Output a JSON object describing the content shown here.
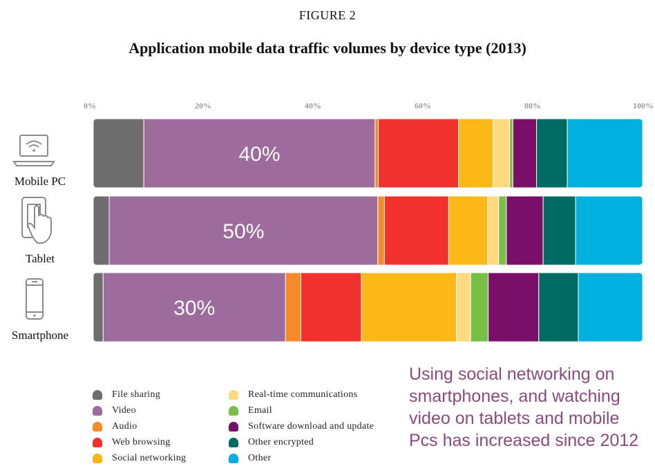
{
  "figure_label": "FIGURE 2",
  "chart_data": {
    "type": "bar",
    "orientation": "horizontal",
    "stacked": true,
    "title": "Application mobile data traffic volumes by device type (2013)",
    "xlim": [
      0,
      100
    ],
    "ticks": [
      "0%",
      "20%",
      "40%",
      "60%",
      "80%",
      "100%"
    ],
    "grid": false,
    "legend_position": "bottom-left",
    "categories": [
      "Mobile PC",
      "Tablet",
      "Smartphone"
    ],
    "category_icons": [
      "laptop-wifi-icon",
      "tablet-touch-icon",
      "smartphone-icon"
    ],
    "bar_labels": [
      "40%",
      "50%",
      "30%"
    ],
    "series": [
      {
        "name": "File sharing",
        "color": "#6e6e6e",
        "values": [
          9.2,
          2.9,
          1.8
        ]
      },
      {
        "name": "Video",
        "color": "#9d6b9c",
        "values": [
          42.1,
          48.9,
          33.2
        ]
      },
      {
        "name": "Audio",
        "color": "#f7892a",
        "values": [
          0.6,
          1.2,
          2.8
        ]
      },
      {
        "name": "Web browsing",
        "color": "#f1312d",
        "values": [
          14.6,
          11.7,
          11.0
        ]
      },
      {
        "name": "Social networking",
        "color": "#fcb817",
        "values": [
          6.3,
          7.1,
          17.3
        ]
      },
      {
        "name": "Real-time communications",
        "color": "#fdda7f",
        "values": [
          3.0,
          2.0,
          2.6
        ]
      },
      {
        "name": "Email",
        "color": "#78bf48",
        "values": [
          0.6,
          1.4,
          3.2
        ]
      },
      {
        "name": "Software download and update",
        "color": "#7a0f6a",
        "values": [
          4.3,
          6.7,
          9.2
        ]
      },
      {
        "name": "Other encrypted",
        "color": "#006b62",
        "values": [
          5.6,
          5.9,
          7.2
        ]
      },
      {
        "name": "Other",
        "color": "#00b0de",
        "values": [
          13.7,
          12.2,
          11.7
        ]
      }
    ]
  },
  "note": "Using social networking on smartphones, and watching video on tablets and mobile Pcs has increased since 2012"
}
